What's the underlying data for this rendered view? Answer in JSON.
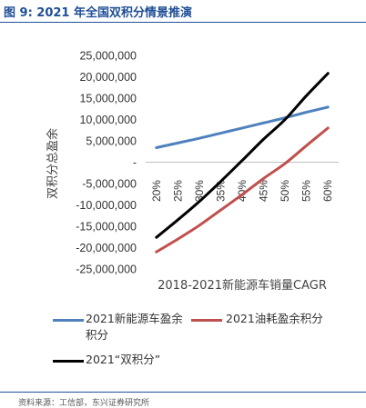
{
  "figure": {
    "title": "图 9:  2021 年全国双积分情景推演",
    "source": "资料来源：工信部，东兴证券研究所"
  },
  "chart_data": {
    "type": "line",
    "xlabel": "2018-2021新能源车销量CAGR",
    "ylabel": "双积分总盈余",
    "categories": [
      "20%",
      "25%",
      "30%",
      "35%",
      "40%",
      "45%",
      "50%",
      "55%",
      "60%"
    ],
    "yticks": [
      "25,000,000",
      "20,000,000",
      "15,000,000",
      "10,000,000",
      "5,000,000",
      "-",
      "-5,000,000",
      "-10,000,000",
      "-15,000,000",
      "-20,000,000",
      "-25,000,000"
    ],
    "ylim": [
      -25000000,
      25000000
    ],
    "ytick_step": 5000000,
    "grid": false,
    "legend_position": "bottom",
    "series": [
      {
        "name": "2021新能源车盈余积分",
        "color": "#4f81bd",
        "values": [
          3400000,
          4500000,
          5600000,
          6800000,
          8000000,
          9200000,
          10400000,
          11700000,
          12900000
        ]
      },
      {
        "name": "2021油耗盈余积分",
        "color": "#c0504d",
        "values": [
          -21000000,
          -18000000,
          -14800000,
          -11200000,
          -7600000,
          -3800000,
          -300000,
          3900000,
          8000000
        ]
      },
      {
        "name": "2021“双积分”",
        "color": "#000000",
        "values": [
          -17600000,
          -13500000,
          -9200000,
          -4500000,
          400000,
          5400000,
          10000000,
          15600000,
          20800000
        ]
      }
    ]
  }
}
